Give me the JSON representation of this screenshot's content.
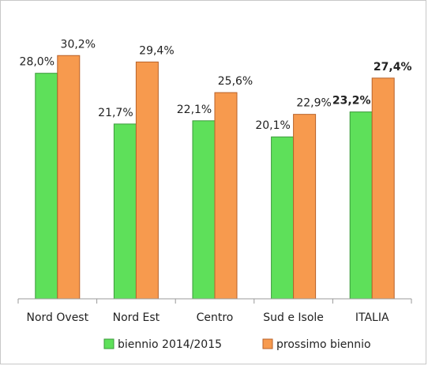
{
  "chart_data": {
    "type": "bar",
    "categories": [
      "Nord Ovest",
      "Nord Est",
      "Centro",
      "Sud e Isole",
      "ITALIA"
    ],
    "series": [
      {
        "name": "biennio 2014/2015",
        "values": [
          28.0,
          21.7,
          22.1,
          20.1,
          23.2
        ],
        "labels": [
          "28,0%",
          "21,7%",
          "22,1%",
          "20,1%",
          "23,2%"
        ],
        "color": "#5ee05a",
        "border": "#3a9a3a"
      },
      {
        "name": "prossimo biennio",
        "values": [
          30.2,
          29.4,
          25.6,
          22.9,
          27.4
        ],
        "labels": [
          "30,2%",
          "29,4%",
          "25,6%",
          "22,9%",
          "27,4%"
        ],
        "color": "#f79a4e",
        "border": "#b8622a"
      }
    ],
    "bold_categories": [
      "ITALIA"
    ],
    "ylim": [
      0,
      32
    ],
    "legend_position": "bottom",
    "grid": false,
    "title": "",
    "xlabel": "",
    "ylabel": ""
  }
}
